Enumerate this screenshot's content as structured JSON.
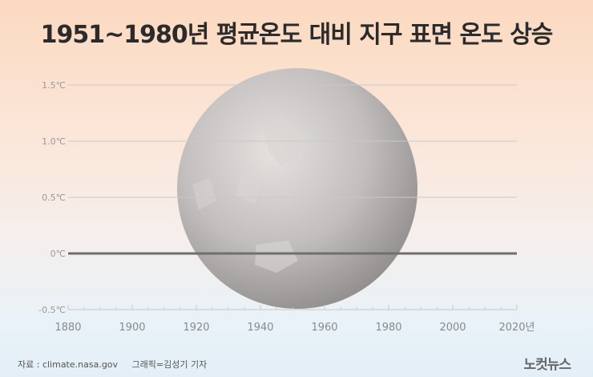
{
  "title": "1951~1980년 평균온도 대비 지구 표면 온도 상승",
  "source": "자료 : climate.nasa.gov",
  "credit": "그래픽=김성기 기자",
  "brand": "노컷뉴스",
  "colors": {
    "grid": "#c9c9c9",
    "zero_line": "#6f6f6f",
    "axis_text": "#9a9a9a",
    "globe": "#b8b5b4"
  },
  "chart_data": {
    "type": "line",
    "title": "1951~1980년 평균온도 대비 지구 표면 온도 상승",
    "xlim": [
      1880,
      2020
    ],
    "ylim": [
      -0.5,
      1.5
    ],
    "x_ticks": [
      1880,
      1900,
      1920,
      1940,
      1960,
      1980,
      2000,
      2020
    ],
    "x_tick_labels": [
      "1880",
      "1900",
      "1920",
      "1940",
      "1960",
      "1980",
      "2000",
      "2020년"
    ],
    "y_ticks": [
      -0.5,
      0,
      0.5,
      1.0,
      1.5
    ],
    "y_tick_labels": [
      "-0.5℃",
      "0℃",
      "0.5℃",
      "1.0℃",
      "1.5℃"
    ],
    "reference_line": 0,
    "grid": true,
    "series": []
  }
}
